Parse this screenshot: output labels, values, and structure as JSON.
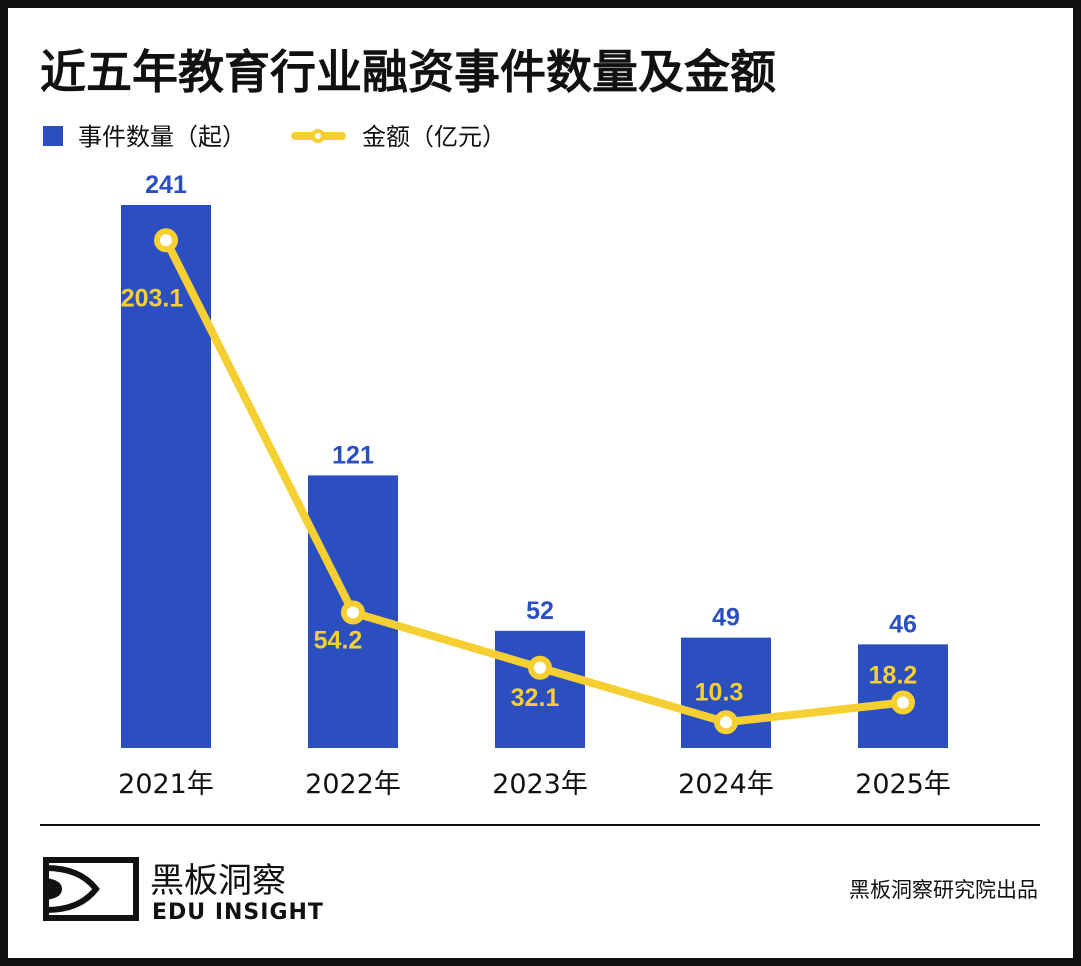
{
  "chart_data": {
    "type": "bar+line",
    "title": "近五年教育行业融资事件数量及金额",
    "categories": [
      "2021年",
      "2022年",
      "2023年",
      "2024年",
      "2025年"
    ],
    "series": [
      {
        "name": "事件数量（起）",
        "type": "bar",
        "color": "#2b4fc0",
        "values": [
          241,
          121,
          52,
          49,
          46
        ]
      },
      {
        "name": "金额（亿元）",
        "type": "line",
        "color": "#f6cf33",
        "values": [
          203.1,
          54.2,
          32.1,
          10.3,
          18.2
        ]
      }
    ],
    "value_labels": {
      "bar": [
        "241",
        "121",
        "52",
        "49",
        "46"
      ],
      "line": [
        "203.1",
        "54.2",
        "32.1",
        "10.3",
        "18.2"
      ]
    },
    "legend_position": "top-left",
    "grid": false
  },
  "footer": {
    "logo_cn": "黑板洞察",
    "logo_en": "EDU INSIGHT",
    "source": "黑板洞察研究院出品"
  }
}
